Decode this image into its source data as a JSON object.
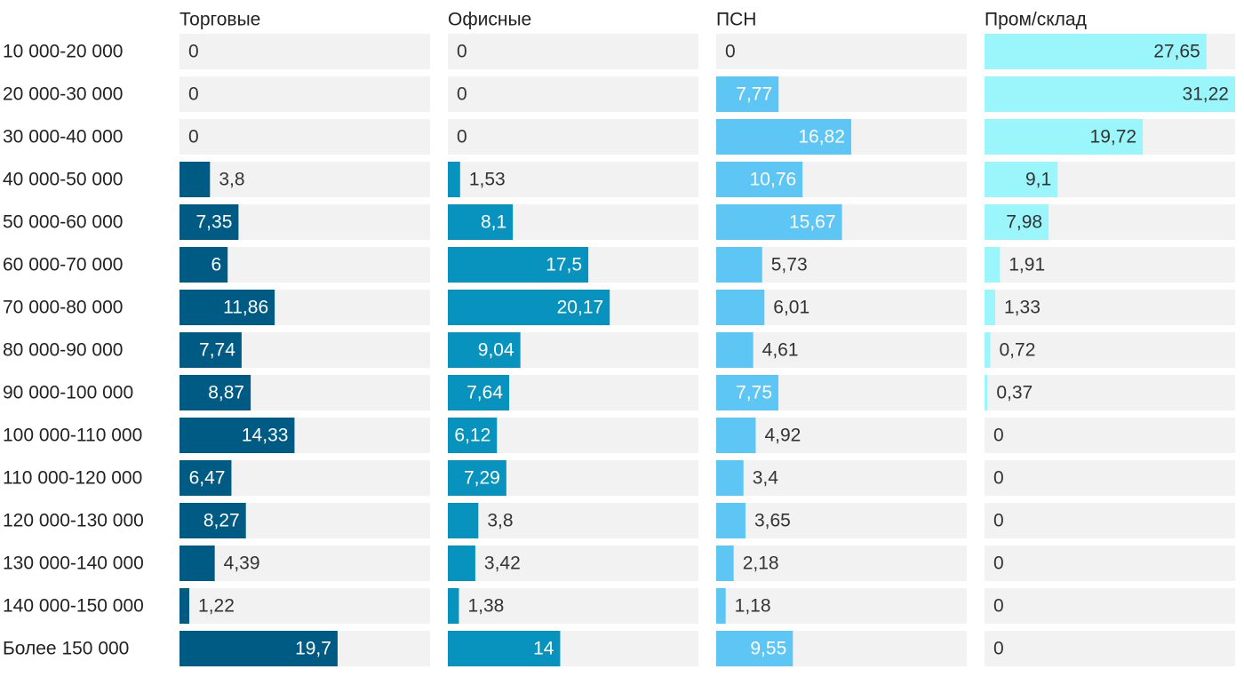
{
  "chart_data": {
    "type": "bar",
    "orientation": "horizontal",
    "layout": "small-multiples",
    "categories": [
      "10 000-20 000",
      "20 000-30 000",
      "30 000-40 000",
      "40 000-50 000",
      "50 000-60 000",
      "60 000-70 000",
      "70 000-80 000",
      "80 000-90 000",
      "90 000-100 000",
      "100 000-110 000",
      "110 000-120 000",
      "120 000-130 000",
      "130 000-140 000",
      "140 000-150 000",
      "Более 150 000"
    ],
    "series": [
      {
        "name": "Торговые",
        "color": "#005b84",
        "values": [
          0,
          0,
          0,
          3.8,
          7.35,
          6,
          11.86,
          7.74,
          8.87,
          14.33,
          6.47,
          8.27,
          4.39,
          1.22,
          19.7
        ],
        "labels": [
          "0",
          "0",
          "0",
          "3,8",
          "7,35",
          "6",
          "11,86",
          "7,74",
          "8,87",
          "14,33",
          "6,47",
          "8,27",
          "4,39",
          "1,22",
          "19,7"
        ]
      },
      {
        "name": "Офисные",
        "color": "#0893be",
        "values": [
          0,
          0,
          0,
          1.53,
          8.1,
          17.5,
          20.17,
          9.04,
          7.64,
          6.12,
          7.29,
          3.8,
          3.42,
          1.38,
          14
        ],
        "labels": [
          "0",
          "0",
          "0",
          "1,53",
          "8,1",
          "17,5",
          "20,17",
          "9,04",
          "7,64",
          "6,12",
          "7,29",
          "3,8",
          "3,42",
          "1,38",
          "14"
        ]
      },
      {
        "name": "ПСН",
        "color": "#5ec6f4",
        "values": [
          0,
          7.77,
          16.82,
          10.76,
          15.67,
          5.73,
          6.01,
          4.61,
          7.75,
          4.92,
          3.4,
          3.65,
          2.18,
          1.18,
          9.55
        ],
        "labels": [
          "0",
          "7,77",
          "16,82",
          "10,76",
          "15,67",
          "5,73",
          "6,01",
          "4,61",
          "7,75",
          "4,92",
          "3,4",
          "3,65",
          "2,18",
          "1,18",
          "9,55"
        ]
      },
      {
        "name": "Пром/склад",
        "color": "#9bf6fb",
        "values": [
          27.65,
          31.22,
          19.72,
          9.1,
          7.98,
          1.91,
          1.33,
          0.72,
          0.37,
          0,
          0,
          0,
          0,
          0,
          0
        ],
        "labels": [
          "27,65",
          "31,22",
          "19,72",
          "9,1",
          "7,98",
          "1,91",
          "1,33",
          "0,72",
          "0,37",
          "0",
          "0",
          "0",
          "0",
          "0",
          "0"
        ]
      }
    ],
    "track_color": "#f2f2f2",
    "title": "",
    "xlabel": "",
    "ylabel": ""
  }
}
